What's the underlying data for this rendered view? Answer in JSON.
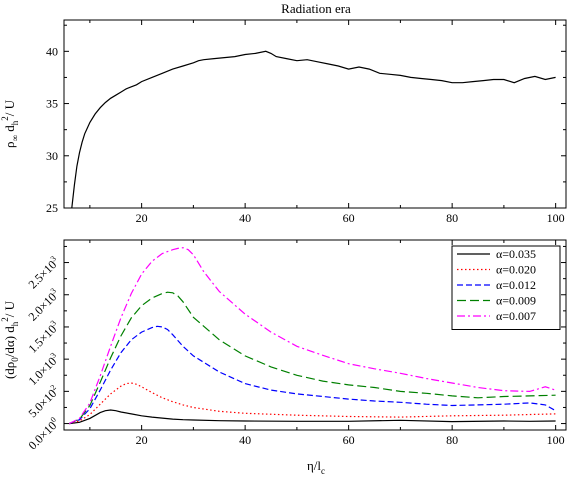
{
  "chart_data": [
    {
      "type": "line",
      "title": "Radiation era",
      "ylabel": {
        "base": "ρ",
        "sub1": "∞",
        "mid": " d",
        "sub2": "h",
        "sup": "2",
        "tail": "/ U"
      },
      "xlim": [
        5,
        102
      ],
      "ylim": [
        25,
        43
      ],
      "xticks": [
        20,
        40,
        60,
        80,
        100
      ],
      "xticklabels": [
        "20",
        "40",
        "60",
        "80",
        "100"
      ],
      "yticks": [
        25,
        30,
        35,
        40
      ],
      "yticklabels": [
        "25",
        "30",
        "35",
        "40"
      ],
      "grid": false,
      "series": [
        {
          "color": "#000000",
          "dash": "solid",
          "x": [
            6.5,
            7.0,
            7.5,
            8.0,
            8.5,
            9.0,
            10,
            11,
            12,
            13,
            14,
            15,
            16,
            17,
            18,
            19,
            20,
            22,
            24,
            26,
            28,
            30,
            31,
            32,
            34,
            36,
            38,
            40,
            42,
            44,
            45,
            46,
            48,
            50,
            52,
            54,
            56,
            58,
            60,
            62,
            64,
            66,
            68,
            70,
            72,
            74,
            76,
            78,
            80,
            82,
            84,
            86,
            88,
            90,
            92,
            94,
            96,
            98,
            100
          ],
          "y": [
            25.0,
            27.2,
            29.0,
            30.3,
            31.3,
            32.1,
            33.2,
            34.0,
            34.6,
            35.1,
            35.5,
            35.8,
            36.1,
            36.4,
            36.6,
            36.8,
            37.1,
            37.5,
            37.9,
            38.3,
            38.6,
            38.9,
            39.1,
            39.2,
            39.3,
            39.4,
            39.5,
            39.7,
            39.8,
            40.0,
            39.8,
            39.5,
            39.3,
            39.1,
            39.2,
            39.0,
            38.8,
            38.6,
            38.3,
            38.5,
            38.3,
            37.9,
            37.8,
            37.7,
            37.5,
            37.4,
            37.3,
            37.2,
            37.0,
            37.0,
            37.1,
            37.2,
            37.3,
            37.3,
            37.0,
            37.4,
            37.6,
            37.3,
            37.5
          ]
        }
      ]
    },
    {
      "type": "line",
      "xlabel": {
        "base": "η/l",
        "sub": "c"
      },
      "ylabel": {
        "base": "(dρ",
        "sub1": "0",
        "mid": "/dα) d",
        "sub2": "h",
        "sup": "2",
        "tail": "/ U"
      },
      "xlim": [
        5,
        102
      ],
      "ylim": [
        -100,
        2850
      ],
      "xticks": [
        20,
        40,
        60,
        80,
        100
      ],
      "xticklabels": [
        "20",
        "40",
        "60",
        "80",
        "100"
      ],
      "yticks": [
        0,
        500,
        1000,
        1500,
        2000,
        2500
      ],
      "yticklabels": [
        {
          "m": "0.0",
          "e": "0"
        },
        {
          "m": "5.0",
          "e": "2"
        },
        {
          "m": "1.0",
          "e": "3"
        },
        {
          "m": "1.5",
          "e": "3"
        },
        {
          "m": "2.0",
          "e": "3"
        },
        {
          "m": "2.5",
          "e": "3"
        }
      ],
      "grid": false,
      "legend": "top-right",
      "series": [
        {
          "name": "α=0.035",
          "color": "#000000",
          "dash": "solid",
          "x": [
            6,
            8,
            10,
            12,
            13,
            14,
            15,
            16,
            18,
            20,
            22,
            24,
            26,
            28,
            30,
            35,
            40,
            50,
            60,
            70,
            80,
            90,
            95,
            100
          ],
          "y": [
            0,
            20,
            80,
            170,
            200,
            210,
            200,
            180,
            150,
            120,
            100,
            85,
            70,
            60,
            55,
            45,
            40,
            35,
            35,
            50,
            30,
            40,
            35,
            40
          ]
        },
        {
          "name": "α=0.020",
          "color": "#ff0000",
          "dash": "dotted",
          "x": [
            6,
            8,
            10,
            12,
            14,
            16,
            17,
            18,
            19,
            20,
            22,
            24,
            26,
            28,
            30,
            35,
            40,
            50,
            60,
            70,
            80,
            90,
            95,
            100
          ],
          "y": [
            0,
            40,
            140,
            300,
            460,
            580,
            620,
            630,
            610,
            570,
            480,
            400,
            340,
            290,
            250,
            190,
            160,
            130,
            110,
            100,
            120,
            130,
            140,
            150
          ]
        },
        {
          "name": "α=0.012",
          "color": "#0000ff",
          "dash": "dashed",
          "x": [
            6,
            8,
            10,
            12,
            14,
            16,
            18,
            20,
            22,
            23,
            24,
            25,
            26,
            28,
            30,
            35,
            40,
            45,
            50,
            55,
            60,
            65,
            70,
            75,
            80,
            85,
            90,
            95,
            98,
            100
          ],
          "y": [
            0,
            60,
            230,
            520,
            830,
            1100,
            1300,
            1420,
            1490,
            1510,
            1500,
            1460,
            1380,
            1200,
            1050,
            800,
            620,
            520,
            460,
            420,
            380,
            350,
            330,
            300,
            280,
            290,
            300,
            320,
            290,
            200
          ]
        },
        {
          "name": "α=0.009",
          "color": "#008000",
          "dash": "longdash",
          "x": [
            6,
            8,
            10,
            12,
            14,
            16,
            18,
            20,
            22,
            24,
            25,
            26,
            27,
            28,
            30,
            35,
            40,
            45,
            50,
            55,
            60,
            65,
            70,
            75,
            80,
            85,
            90,
            95,
            100
          ],
          "y": [
            0,
            70,
            280,
            640,
            1020,
            1360,
            1640,
            1830,
            1950,
            2020,
            2040,
            2030,
            1980,
            1890,
            1650,
            1300,
            1050,
            880,
            750,
            660,
            600,
            560,
            500,
            470,
            430,
            400,
            420,
            430,
            440
          ]
        },
        {
          "name": "α=0.007",
          "color": "#ff00ff",
          "dash": "dashdot",
          "x": [
            6,
            8,
            10,
            12,
            14,
            16,
            18,
            20,
            22,
            24,
            26,
            27,
            28,
            29,
            30,
            32,
            35,
            40,
            45,
            50,
            55,
            60,
            65,
            70,
            75,
            80,
            85,
            90,
            95,
            98,
            100
          ],
          "y": [
            0,
            80,
            320,
            740,
            1200,
            1640,
            2020,
            2320,
            2520,
            2640,
            2700,
            2720,
            2730,
            2700,
            2620,
            2360,
            2050,
            1700,
            1420,
            1200,
            1060,
            930,
            850,
            780,
            700,
            630,
            560,
            510,
            500,
            570,
            520
          ]
        }
      ]
    }
  ]
}
